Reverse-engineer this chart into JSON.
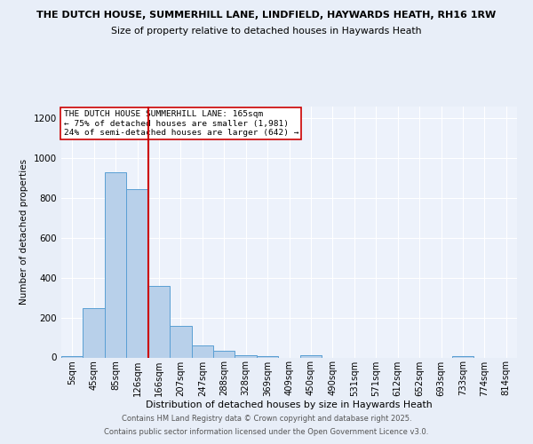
{
  "title1": "THE DUTCH HOUSE, SUMMERHILL LANE, LINDFIELD, HAYWARDS HEATH, RH16 1RW",
  "title2": "Size of property relative to detached houses in Haywards Heath",
  "xlabel": "Distribution of detached houses by size in Haywards Heath",
  "ylabel": "Number of detached properties",
  "bin_labels": [
    "5sqm",
    "45sqm",
    "85sqm",
    "126sqm",
    "166sqm",
    "207sqm",
    "247sqm",
    "288sqm",
    "328sqm",
    "369sqm",
    "409sqm",
    "450sqm",
    "490sqm",
    "531sqm",
    "571sqm",
    "612sqm",
    "652sqm",
    "693sqm",
    "733sqm",
    "774sqm",
    "814sqm"
  ],
  "bar_values": [
    8,
    248,
    930,
    843,
    358,
    157,
    62,
    33,
    12,
    8,
    0,
    12,
    0,
    0,
    0,
    0,
    0,
    0,
    5,
    0,
    0
  ],
  "bar_color": "#b8d0ea",
  "bar_edgecolor": "#5a9fd4",
  "vline_color": "#cc0000",
  "annotation_text": "THE DUTCH HOUSE SUMMERHILL LANE: 165sqm\n← 75% of detached houses are smaller (1,981)\n24% of semi-detached houses are larger (642) →",
  "annotation_box_color": "#ffffff",
  "annotation_box_edgecolor": "#cc0000",
  "ylim": [
    0,
    1260
  ],
  "yticks": [
    0,
    200,
    400,
    600,
    800,
    1000,
    1200
  ],
  "footer1": "Contains HM Land Registry data © Crown copyright and database right 2025.",
  "footer2": "Contains public sector information licensed under the Open Government Licence v3.0.",
  "bg_color": "#e8eef8",
  "plot_bg_color": "#edf2fb"
}
